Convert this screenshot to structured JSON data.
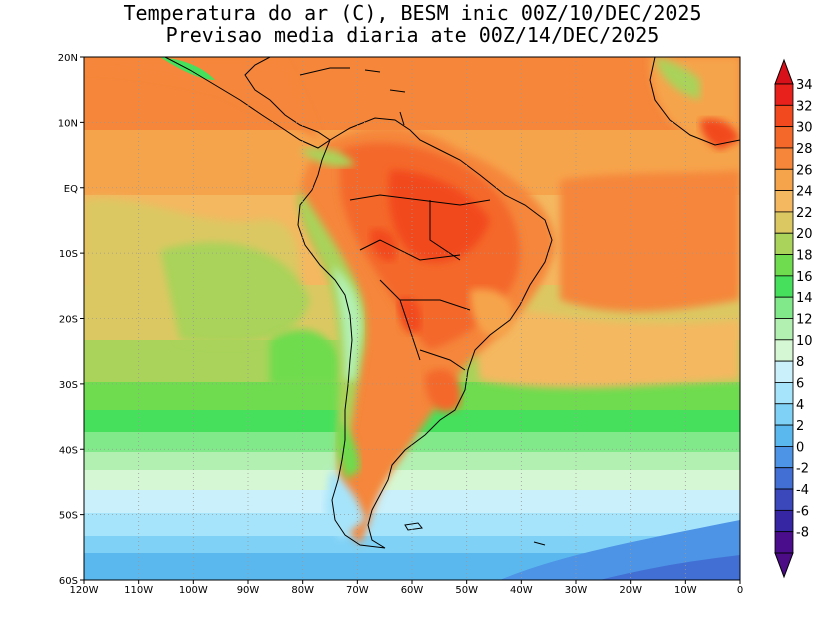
{
  "title": {
    "line1": "Temperatura do ar (C), BESM inic 00Z/10/DEC/2025",
    "line2": "Previsao media diaria ate 00Z/14/DEC/2025"
  },
  "map": {
    "lat_labels": [
      "20N",
      "10N",
      "EQ",
      "10S",
      "20S",
      "30S",
      "40S",
      "50S",
      "60S"
    ],
    "lon_labels": [
      "120W",
      "110W",
      "100W",
      "90W",
      "80W",
      "70W",
      "60W",
      "50W",
      "40W",
      "30W",
      "20W",
      "10W",
      "0"
    ]
  },
  "colorbar": {
    "labels": [
      "34",
      "32",
      "30",
      "28",
      "26",
      "24",
      "22",
      "20",
      "18",
      "16",
      "14",
      "12",
      "10",
      "8",
      "6",
      "4",
      "2",
      "0",
      "-2",
      "-4",
      "-6",
      "-8"
    ],
    "colors": [
      "#e8211c",
      "#f24a1e",
      "#f4682a",
      "#f5863a",
      "#f6a44c",
      "#f4b860",
      "#dcc862",
      "#a9d35a",
      "#6edc4e",
      "#46e05c",
      "#82e98a",
      "#b2f0b2",
      "#d6f7d3",
      "#c9f0fb",
      "#a6e4fb",
      "#7fd1f6",
      "#5ab8ef",
      "#4d93e6",
      "#416fd3",
      "#3a48bc",
      "#3726a4",
      "#4a0e8c"
    ],
    "top_arrow_color": "#d8101a",
    "bottom_arrow_color": "#4b0c86"
  }
}
